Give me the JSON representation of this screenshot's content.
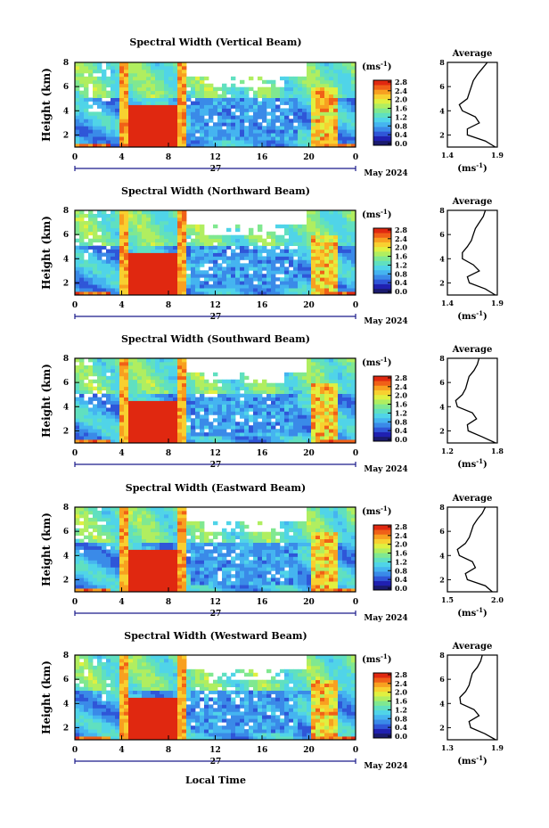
{
  "figure": {
    "xlabel": "Local Time",
    "day_label": "27",
    "date_label": "May 2024",
    "colorbar_unit": "(ms",
    "colorbar_unit_sup": "-1",
    "colorbar_unit_close": ")",
    "avg_title": "Average",
    "avg_xlabel": "(ms",
    "avg_xlabel_sup": "-1",
    "avg_xlabel_close": ")",
    "ylabel": "Height (km)"
  },
  "colors": [
    "#1a1a6e",
    "#2020b0",
    "#2f56d8",
    "#3a8ae8",
    "#45b4f0",
    "#50d4e8",
    "#60e0c0",
    "#80e890",
    "#b0ee60",
    "#e0f040",
    "#f8d030",
    "#f8a020",
    "#f06018",
    "#e02810"
  ],
  "colorbar_ticks": [
    "0.0",
    "0.4",
    "0.8",
    "1.2",
    "1.6",
    "2.0",
    "2.4",
    "2.8"
  ],
  "chart_data": [
    {
      "type": "heatmap",
      "title": "Spectral Width (Vertical Beam)",
      "x_ticks": [
        "0",
        "4",
        "8",
        "12",
        "16",
        "20",
        "0"
      ],
      "y_ticks": [
        "2",
        "4",
        "6",
        "8"
      ],
      "xlim": [
        0,
        24
      ],
      "ylim": [
        1,
        8
      ],
      "colorbar_range": [
        0.0,
        2.8
      ],
      "avg_profile": {
        "title": "Average",
        "x_ticks": [
          "1.4",
          "1.9"
        ],
        "xlim": [
          1.4,
          1.9
        ],
        "y_ticks": [
          "2",
          "4",
          "6",
          "8"
        ],
        "ylim": [
          1,
          8
        ],
        "heights": [
          1,
          1.5,
          2,
          2.5,
          3,
          3.5,
          4,
          4.5,
          5,
          5.5,
          6,
          6.5,
          7,
          7.5,
          8
        ],
        "values": [
          1.88,
          1.78,
          1.6,
          1.6,
          1.72,
          1.68,
          1.55,
          1.52,
          1.6,
          1.62,
          1.64,
          1.66,
          1.7,
          1.75,
          1.8
        ]
      }
    },
    {
      "type": "heatmap",
      "title": "Spectral Width (Northward Beam)",
      "x_ticks": [
        "0",
        "4",
        "8",
        "12",
        "16",
        "20",
        "0"
      ],
      "y_ticks": [
        "2",
        "4",
        "6",
        "8"
      ],
      "xlim": [
        0,
        24
      ],
      "ylim": [
        1,
        8
      ],
      "colorbar_range": [
        0.0,
        2.8
      ],
      "avg_profile": {
        "title": "Average",
        "x_ticks": [
          "1.4",
          "1.9"
        ],
        "xlim": [
          1.4,
          1.9
        ],
        "y_ticks": [
          "2",
          "4",
          "6",
          "8"
        ],
        "ylim": [
          1,
          8
        ],
        "heights": [
          1,
          1.5,
          2,
          2.5,
          3,
          3.5,
          4,
          4.5,
          5,
          5.5,
          6,
          6.5,
          7,
          7.5,
          8
        ],
        "values": [
          1.88,
          1.78,
          1.62,
          1.6,
          1.72,
          1.66,
          1.55,
          1.55,
          1.6,
          1.64,
          1.66,
          1.68,
          1.72,
          1.76,
          1.78
        ]
      }
    },
    {
      "type": "heatmap",
      "title": "Spectral Width (Southward Beam)",
      "x_ticks": [
        "0",
        "4",
        "8",
        "12",
        "16",
        "20",
        "0"
      ],
      "y_ticks": [
        "2",
        "4",
        "6",
        "8"
      ],
      "xlim": [
        0,
        24
      ],
      "ylim": [
        1,
        8
      ],
      "colorbar_range": [
        0.0,
        2.8
      ],
      "avg_profile": {
        "title": "Average",
        "x_ticks": [
          "1.2",
          "1.8"
        ],
        "xlim": [
          1.2,
          1.8
        ],
        "y_ticks": [
          "2",
          "4",
          "6",
          "8"
        ],
        "ylim": [
          1,
          8
        ],
        "heights": [
          1,
          1.5,
          2,
          2.5,
          3,
          3.5,
          4,
          4.5,
          5,
          5.5,
          6,
          6.5,
          7,
          7.5,
          8
        ],
        "values": [
          1.78,
          1.62,
          1.45,
          1.44,
          1.55,
          1.5,
          1.32,
          1.3,
          1.38,
          1.42,
          1.44,
          1.46,
          1.52,
          1.56,
          1.58
        ]
      }
    },
    {
      "type": "heatmap",
      "title": "Spectral Width (Eastward Beam)",
      "x_ticks": [
        "0",
        "4",
        "8",
        "12",
        "16",
        "20",
        "0"
      ],
      "y_ticks": [
        "2",
        "4",
        "6",
        "8"
      ],
      "xlim": [
        0,
        24
      ],
      "ylim": [
        1,
        8
      ],
      "colorbar_range": [
        0.0,
        2.8
      ],
      "avg_profile": {
        "title": "Average",
        "x_ticks": [
          "1.5",
          "2.0"
        ],
        "xlim": [
          1.5,
          2.0
        ],
        "y_ticks": [
          "2",
          "4",
          "6",
          "8"
        ],
        "ylim": [
          1,
          8
        ],
        "heights": [
          1,
          1.5,
          2,
          2.5,
          3,
          3.5,
          4,
          4.5,
          5,
          5.5,
          6,
          6.5,
          7,
          7.5,
          8
        ],
        "values": [
          1.95,
          1.88,
          1.7,
          1.68,
          1.78,
          1.75,
          1.62,
          1.6,
          1.68,
          1.72,
          1.74,
          1.76,
          1.8,
          1.85,
          1.88
        ]
      }
    },
    {
      "type": "heatmap",
      "title": "Spectral Width (Westward Beam)",
      "x_ticks": [
        "0",
        "4",
        "8",
        "12",
        "16",
        "20",
        "0"
      ],
      "y_ticks": [
        "2",
        "4",
        "6",
        "8"
      ],
      "xlim": [
        0,
        24
      ],
      "ylim": [
        1,
        8
      ],
      "colorbar_range": [
        0.0,
        2.8
      ],
      "avg_profile": {
        "title": "Average",
        "x_ticks": [
          "1.3",
          "1.9"
        ],
        "xlim": [
          1.3,
          1.9
        ],
        "y_ticks": [
          "2",
          "4",
          "6",
          "8"
        ],
        "ylim": [
          1,
          8
        ],
        "heights": [
          1,
          1.5,
          2,
          2.5,
          3,
          3.5,
          4,
          4.5,
          5,
          5.5,
          6,
          6.5,
          7,
          7.5,
          8
        ],
        "values": [
          1.88,
          1.75,
          1.58,
          1.56,
          1.68,
          1.62,
          1.46,
          1.45,
          1.52,
          1.56,
          1.58,
          1.6,
          1.66,
          1.7,
          1.72
        ]
      }
    }
  ]
}
